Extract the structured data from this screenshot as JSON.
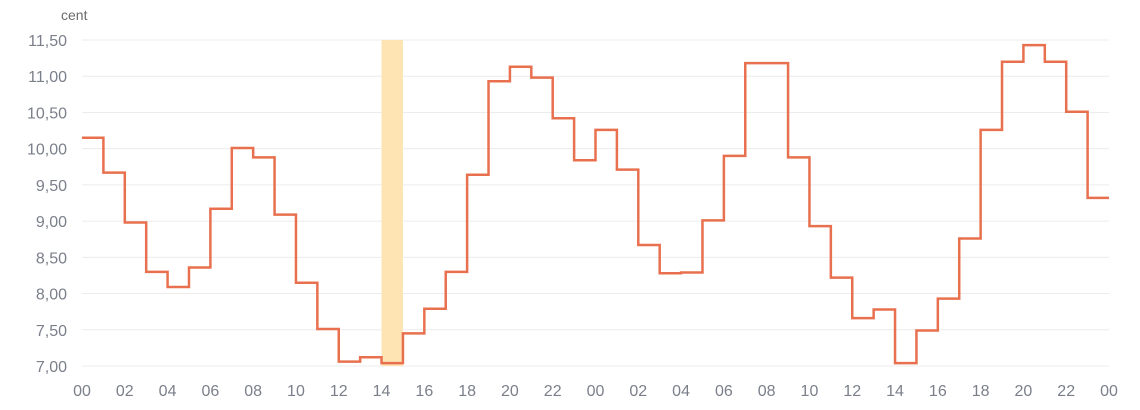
{
  "chart_data": {
    "type": "line",
    "step": true,
    "title": "",
    "xlabel": "",
    "ylabel": "cent",
    "ylim": [
      7.0,
      11.5
    ],
    "yticks": [
      "7,00",
      "7,50",
      "8,00",
      "8,50",
      "9,00",
      "9,50",
      "10,00",
      "10,50",
      "11,00",
      "11,50"
    ],
    "xticks": [
      "00",
      "02",
      "04",
      "06",
      "08",
      "10",
      "12",
      "14",
      "16",
      "18",
      "20",
      "22",
      "00",
      "02",
      "04",
      "06",
      "08",
      "10",
      "12",
      "14",
      "16",
      "18",
      "20",
      "22",
      "00"
    ],
    "grid": true,
    "highlight": {
      "hour_index": 14,
      "color": "#fee4b3"
    },
    "line_color": "#e8704f",
    "series": [
      {
        "values": [
          10.15,
          9.67,
          8.98,
          8.3,
          8.09,
          8.36,
          9.17,
          10.01,
          9.88,
          9.09,
          8.15,
          7.51,
          7.06,
          7.12,
          7.04,
          7.45,
          7.79,
          8.3,
          9.64,
          10.93,
          11.13,
          10.98,
          10.42,
          9.84,
          10.26,
          9.71,
          8.67,
          8.28,
          8.29,
          9.01,
          9.9,
          11.18,
          11.18,
          9.88,
          8.93,
          8.22,
          7.66,
          7.78,
          7.04,
          7.49,
          7.93,
          8.76,
          10.26,
          11.2,
          11.43,
          11.2,
          10.51,
          9.32
        ]
      }
    ]
  }
}
